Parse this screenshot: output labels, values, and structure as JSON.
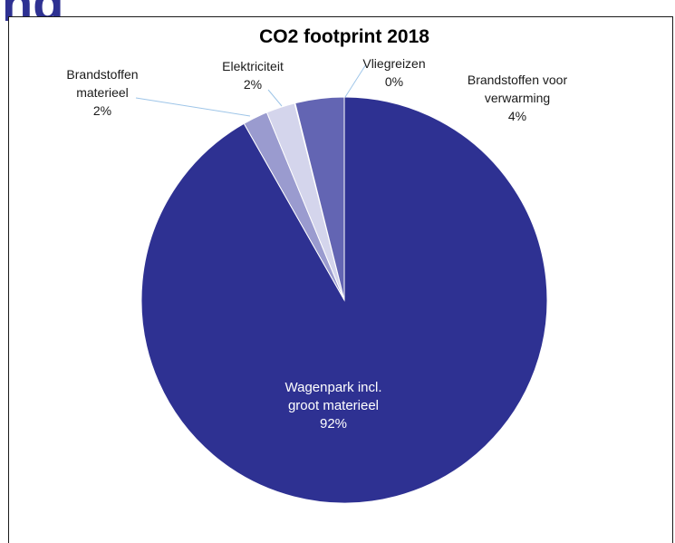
{
  "heading_fragment": "ng",
  "chart_data": {
    "type": "pie",
    "title": "CO2 footprint 2018",
    "start_angle_deg": 0,
    "direction": "clockwise",
    "slices": [
      {
        "name": "Wagenpark incl. groot materieel",
        "label_lines": [
          "Wagenpark incl.",
          "groot materieel",
          "92%"
        ],
        "percent_label": "92%",
        "value": 92,
        "color": "#2E3192",
        "label_inside": true
      },
      {
        "name": "Brandstoffen materieel",
        "label_lines": [
          "Brandstoffen",
          "materieel",
          "2%"
        ],
        "percent_label": "2%",
        "value": 2,
        "color": "#9A9BCF",
        "label_inside": false
      },
      {
        "name": "Elektriciteit",
        "label_lines": [
          "Elektriciteit",
          "2%"
        ],
        "percent_label": "2%",
        "value": 2.3,
        "color": "#D4D5EC",
        "label_inside": false
      },
      {
        "name": "Vliegreizen",
        "label_lines": [
          "Vliegreizen",
          "0%"
        ],
        "percent_label": "0%",
        "value": 0.05,
        "color": "#3B3E9A",
        "label_inside": false
      },
      {
        "name": "Brandstoffen voor verwarming",
        "label_lines": [
          "Brandstoffen voor",
          "verwarming",
          "4%"
        ],
        "percent_label": "4%",
        "value": 3.9,
        "color": "#6365B3",
        "label_inside": false
      }
    ],
    "legend": "none",
    "leader_line_color": "#9EC5E8"
  }
}
